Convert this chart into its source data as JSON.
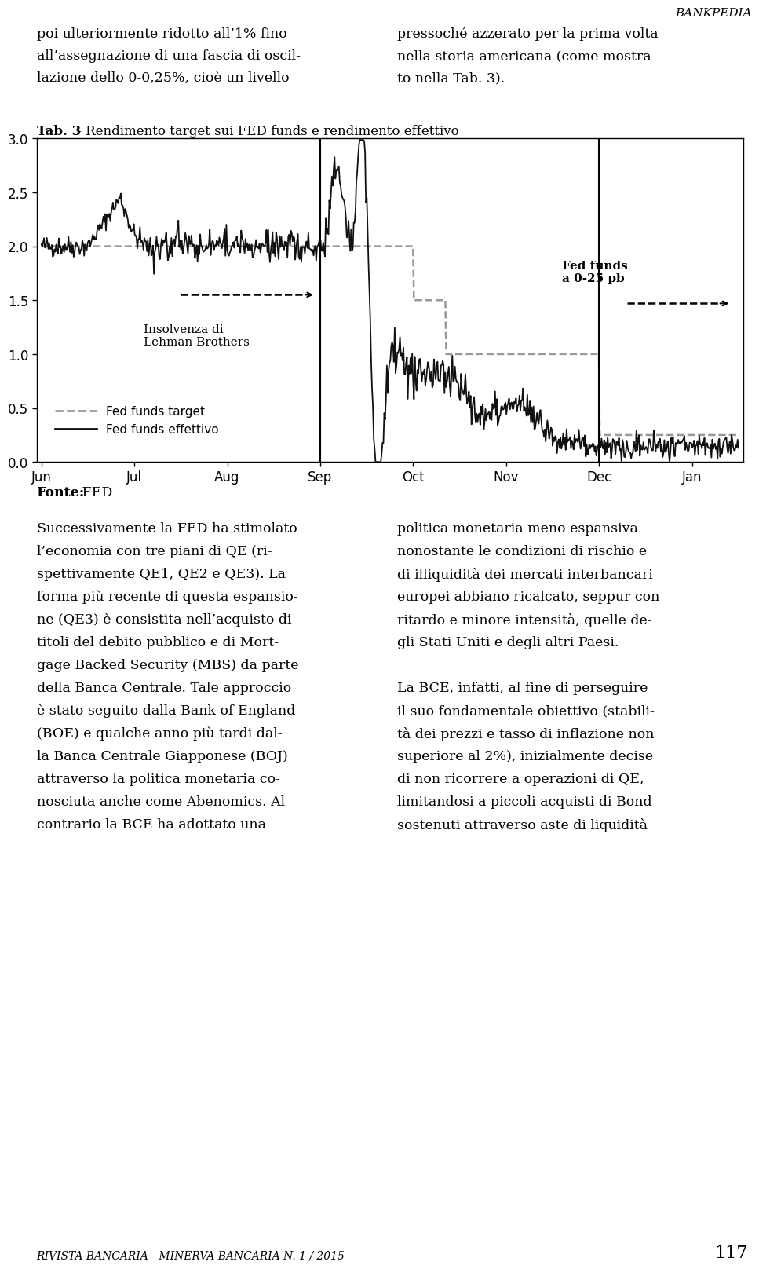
{
  "title_bold": "Tab. 3",
  "title_rest": " - Rendimento target sui FED funds e rendimento effettivo",
  "header_text": "BANKPEDIA",
  "xlabel_ticks": [
    "Jun",
    "Jul",
    "Aug",
    "Sep",
    "Oct",
    "Nov",
    "Dec",
    "Jan"
  ],
  "yticks": [
    0.0,
    0.5,
    1.0,
    1.5,
    2.0,
    2.5,
    3.0
  ],
  "ylim": [
    0.0,
    3.0
  ],
  "background_color": "#ffffff",
  "chart_bg": "#ffffff",
  "line_color": "#111111",
  "dashed_color": "#888888",
  "annotation_insolvenza": "Insolvenza di\nLehman Brothers",
  "annotation_fed": "Fed funds\na 0-25 pb",
  "legend_dashed": "Fed funds target",
  "legend_solid": "Fed funds effettivo",
  "top_left_lines": [
    "poi ulteriormente ridotto all’1% fino",
    "all’assegnazione di una fascia di oscil-",
    "lazione dello 0-0,25%, cioè un livello"
  ],
  "top_right_lines": [
    "pressoché azzerato per la prima volta",
    "nella storia americana (come mostra-",
    "to nella Tab. 3)."
  ],
  "bottom_texts_left": [
    "Successivamente la FED ha stimolato",
    "l’economia con tre piani di QE (ri-",
    "spettivamente QE1, QE2 e QE3). La",
    "forma più recente di questa espansio-",
    "ne (QE3) è consistita nell’acquisto di",
    "titoli del debito pubblico e di Mort-",
    "gage Backed Security (MBS) da parte",
    "della Banca Centrale. Tale approccio",
    "è stato seguito dalla Bank of England",
    "(BOE) e qualche anno più tardi dal-",
    "la Banca Centrale Giapponese (BOJ)",
    "attraverso la politica monetaria co-",
    "nosciuta anche come Abenomics. Al",
    "contrario la BCE ha adottato una"
  ],
  "bottom_texts_right": [
    "politica monetaria meno espansiva",
    "nonostante le condizioni di rischio e",
    "di illiquidità dei mercati interbancari",
    "europei abbiano ricalcato, seppur con",
    "ritardo e minore intensità, quelle de-",
    "gli Stati Uniti e degli altri Paesi.",
    "",
    "La BCE, infatti, al fine di perseguire",
    "il suo fondamentale obiettivo (stabili-",
    "tà dei prezzi e tasso di inflazione non",
    "superiore al 2%), inizialmente decise",
    "di non ricorrere a operazioni di QE,",
    "limitandosi a piccoli acquisti di Bond",
    "sostenuti attraverso aste di liquidità"
  ],
  "footer_text": "RIVISTA BANCARIA - MINERVA BANCARIA N. 1 / 2015",
  "footer_page": "117",
  "fonte_bold": "Fonte:",
  "fonte_rest": " FED"
}
